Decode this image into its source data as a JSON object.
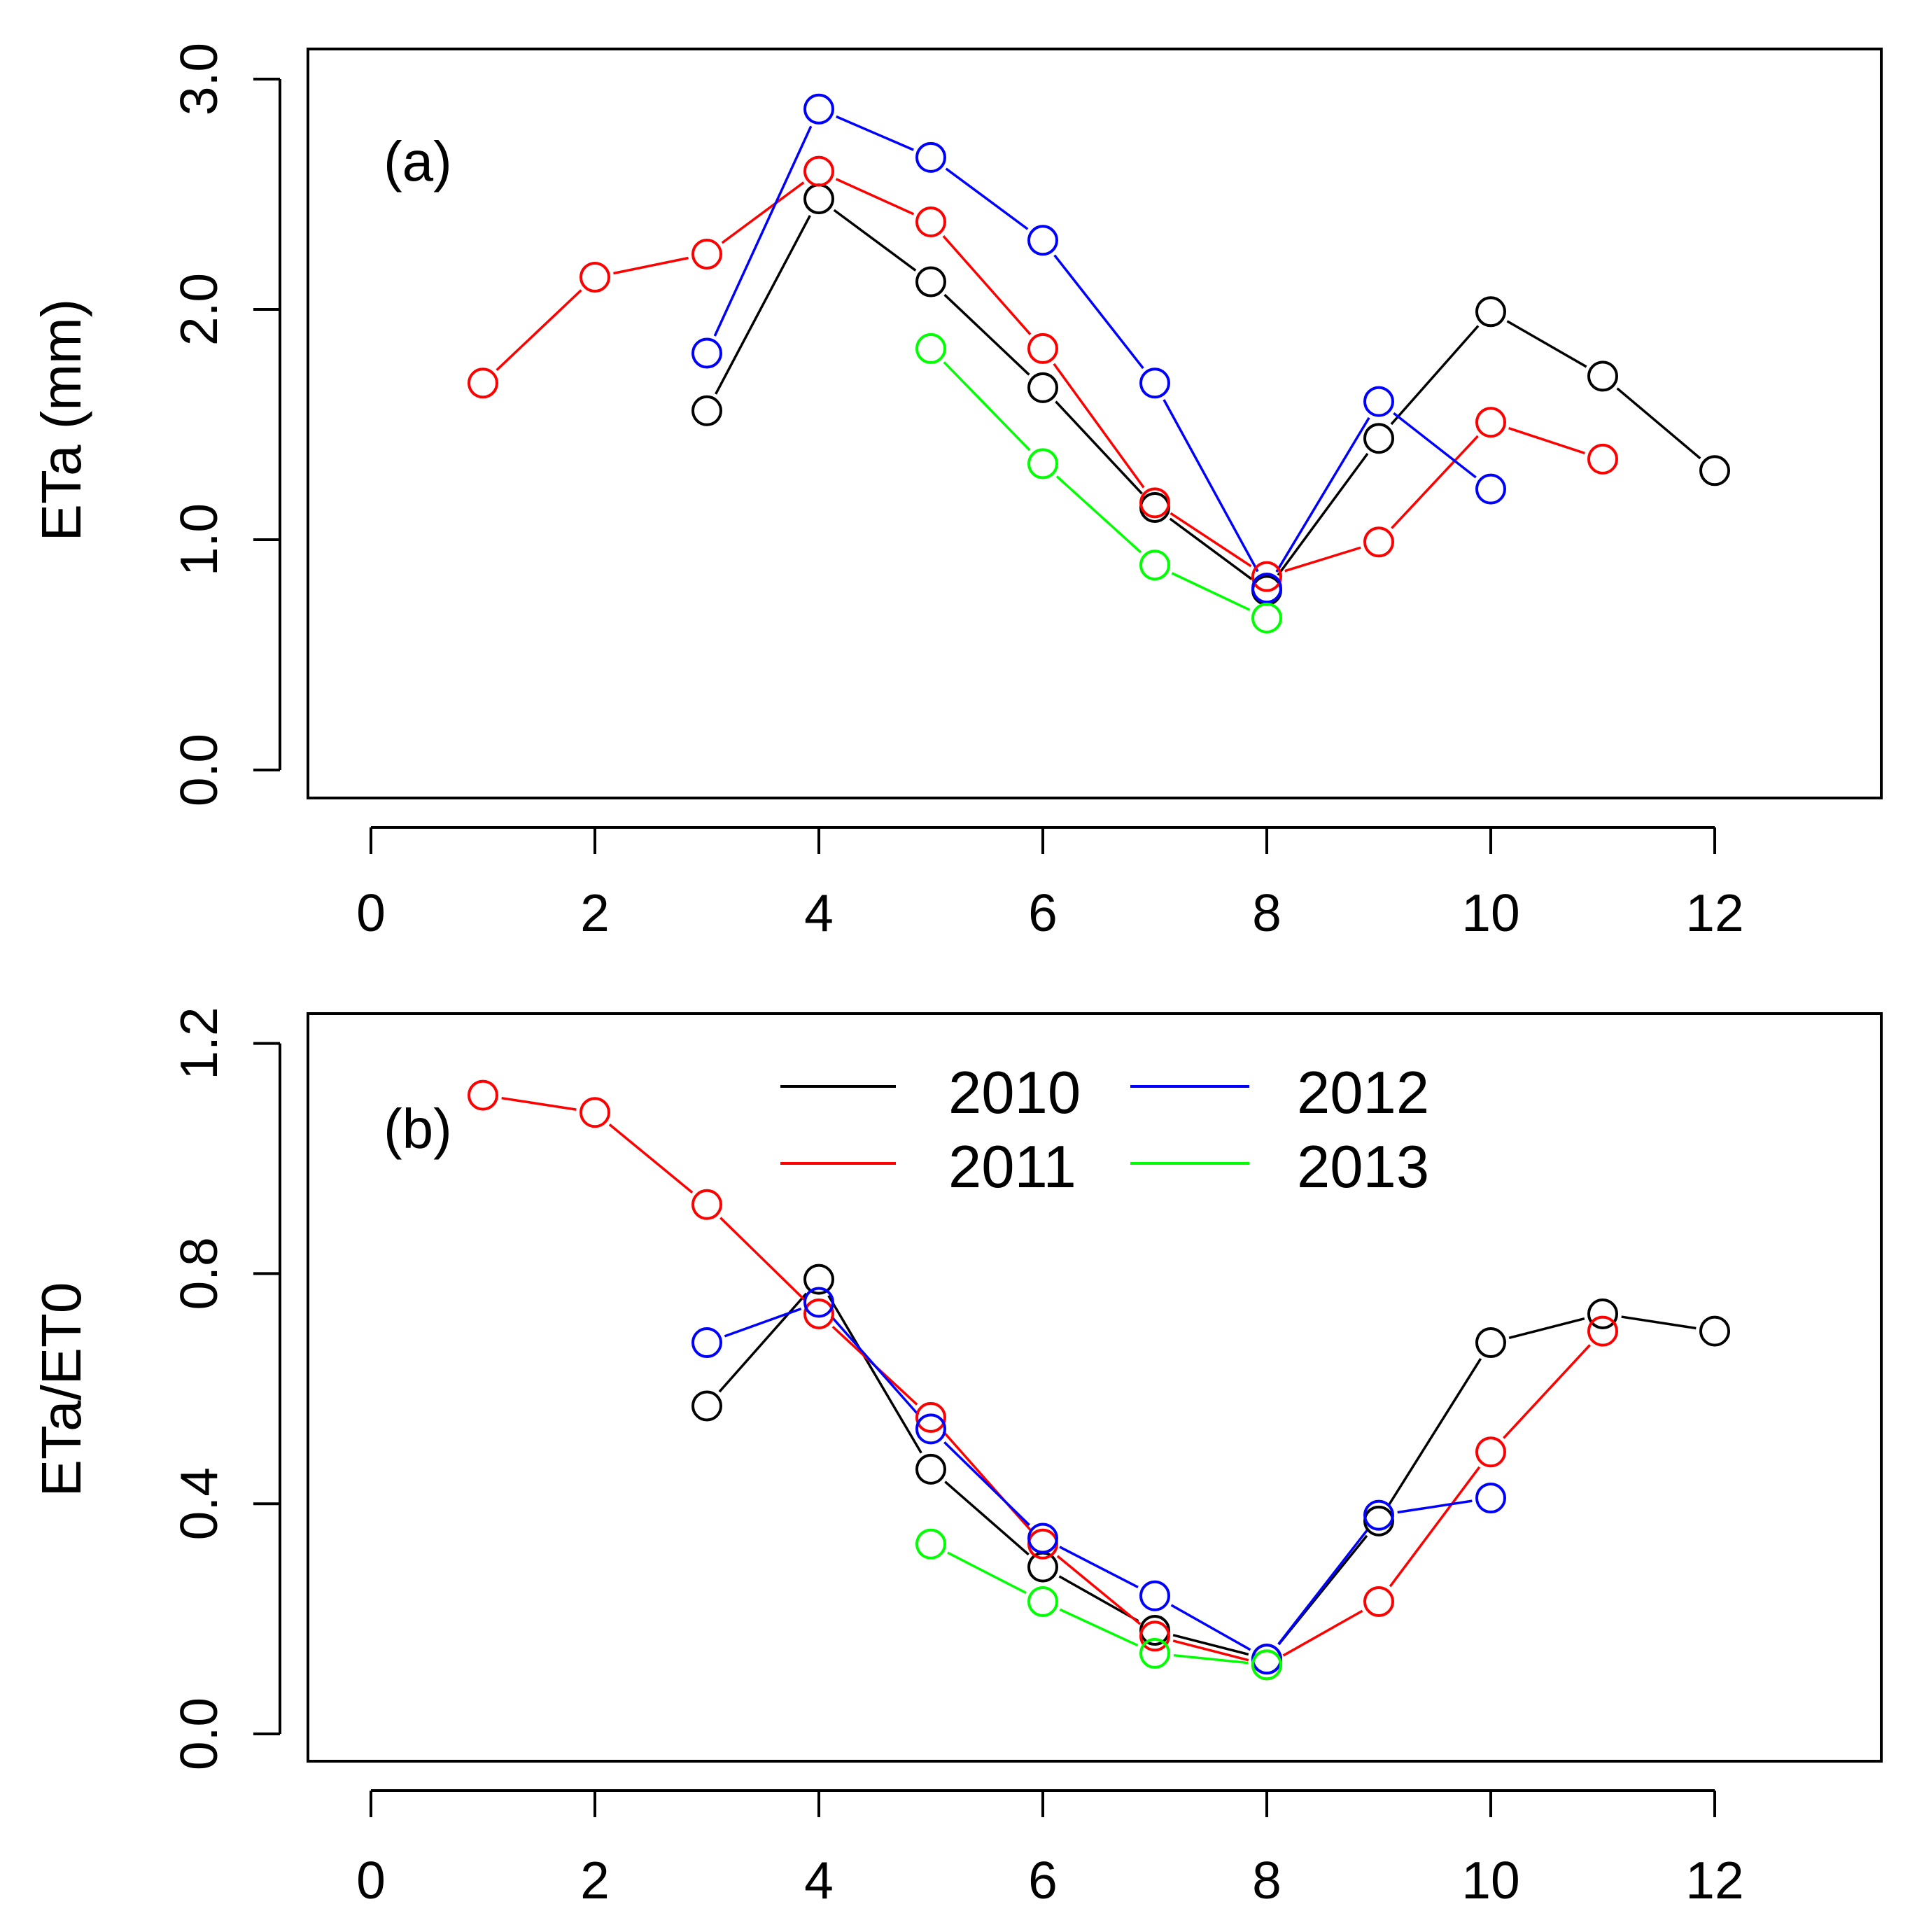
{
  "chart_data": [
    {
      "type": "line",
      "panel_label": "(a)",
      "xlabel": "",
      "ylabel": "ETa (mm)",
      "xlim": [
        0,
        12
      ],
      "ylim": [
        0,
        3
      ],
      "x_ticks": [
        "0",
        "2",
        "4",
        "6",
        "8",
        "10",
        "12"
      ],
      "y_ticks": [
        "0.0",
        "1.0",
        "2.0",
        "3.0"
      ],
      "series": [
        {
          "name": "2010",
          "color": "#000000",
          "x": [
            3,
            4,
            5,
            6,
            7,
            8,
            9,
            10,
            11,
            12
          ],
          "values": [
            1.56,
            2.48,
            2.12,
            1.66,
            1.14,
            0.78,
            1.44,
            1.99,
            1.71,
            1.3
          ]
        },
        {
          "name": "2011",
          "color": "#ff0000",
          "x": [
            1,
            2,
            3,
            4,
            5,
            6,
            7,
            8,
            9,
            10,
            11
          ],
          "values": [
            1.68,
            2.14,
            2.24,
            2.6,
            2.38,
            1.83,
            1.16,
            0.84,
            0.99,
            1.51,
            1.35
          ]
        },
        {
          "name": "2012",
          "color": "#0000ff",
          "x": [
            3,
            4,
            5,
            6,
            7,
            8,
            9,
            10
          ],
          "values": [
            1.81,
            2.87,
            2.66,
            2.3,
            1.68,
            0.79,
            1.6,
            1.22
          ]
        },
        {
          "name": "2013",
          "color": "#00ff00",
          "x": [
            5,
            6,
            7,
            8
          ],
          "values": [
            1.83,
            1.33,
            0.89,
            0.66
          ]
        }
      ]
    },
    {
      "type": "line",
      "panel_label": "(b)",
      "xlabel": "",
      "ylabel": "ETa/ET0",
      "xlim": [
        0,
        12
      ],
      "ylim": [
        0,
        1.2
      ],
      "x_ticks": [
        "0",
        "2",
        "4",
        "6",
        "8",
        "10",
        "12"
      ],
      "y_ticks": [
        "0.0",
        "0.4",
        "0.8",
        "1.2"
      ],
      "legend": {
        "position": "top-center",
        "columns": 2
      },
      "series": [
        {
          "name": "2010",
          "color": "#000000",
          "x": [
            3,
            4,
            5,
            6,
            7,
            8,
            9,
            10,
            11,
            12
          ],
          "values": [
            0.57,
            0.79,
            0.46,
            0.29,
            0.18,
            0.13,
            0.37,
            0.68,
            0.73,
            0.7
          ]
        },
        {
          "name": "2011",
          "color": "#ff0000",
          "x": [
            1,
            2,
            3,
            4,
            5,
            6,
            7,
            8,
            9,
            10,
            11
          ],
          "values": [
            1.11,
            1.08,
            0.92,
            0.73,
            0.55,
            0.33,
            0.17,
            0.12,
            0.23,
            0.49,
            0.7
          ]
        },
        {
          "name": "2012",
          "color": "#0000ff",
          "x": [
            3,
            4,
            5,
            6,
            7,
            8,
            9,
            10
          ],
          "values": [
            0.68,
            0.75,
            0.53,
            0.34,
            0.24,
            0.13,
            0.38,
            0.41
          ]
        },
        {
          "name": "2013",
          "color": "#00ff00",
          "x": [
            5,
            6,
            7,
            8
          ],
          "values": [
            0.33,
            0.23,
            0.14,
            0.12
          ]
        }
      ]
    }
  ]
}
